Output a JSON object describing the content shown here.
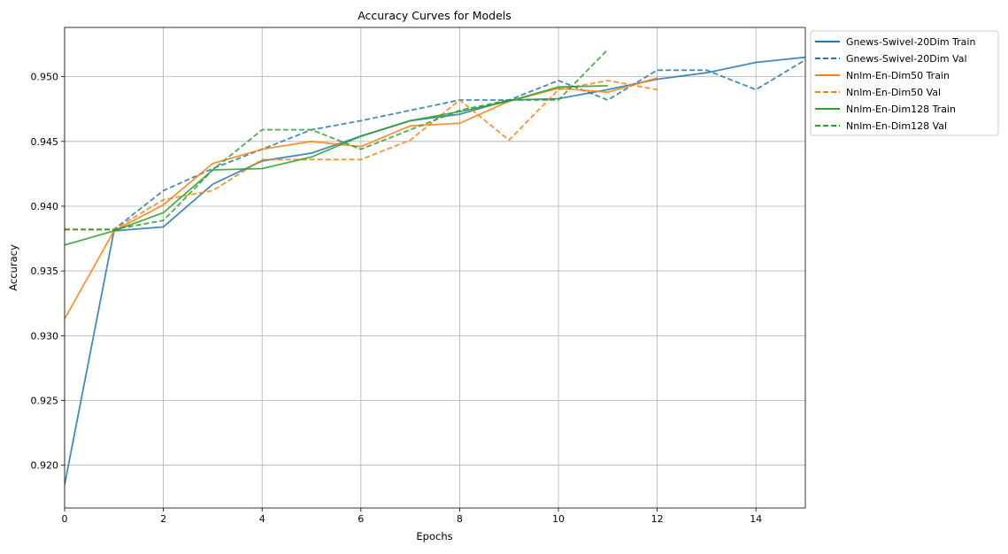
{
  "chart_data": {
    "type": "line",
    "title": "Accuracy Curves for Models",
    "xlabel": "Epochs",
    "ylabel": "Accuracy",
    "xlim": [
      0,
      15
    ],
    "ylim": [
      0.9167,
      0.9538
    ],
    "xticks": [
      0,
      2,
      4,
      6,
      8,
      10,
      12,
      14
    ],
    "xtick_labels": [
      "0",
      "2",
      "4",
      "6",
      "8",
      "10",
      "12",
      "14"
    ],
    "yticks": [
      0.92,
      0.925,
      0.93,
      0.935,
      0.94,
      0.945,
      0.95
    ],
    "ytick_labels": [
      "0.920",
      "0.925",
      "0.930",
      "0.935",
      "0.940",
      "0.945",
      "0.950"
    ],
    "grid": true,
    "legend_position": "outside-top-right",
    "series": [
      {
        "name": "Gnews-Swivel-20Dim Train",
        "color": "#1f77b4",
        "style": "solid",
        "x": [
          0,
          1,
          2,
          3,
          4,
          5,
          6,
          7,
          8,
          9,
          10,
          11,
          12,
          13,
          14,
          15
        ],
        "y": [
          0.9185,
          0.9381,
          0.9384,
          0.9417,
          0.9435,
          0.9441,
          0.9454,
          0.9466,
          0.9471,
          0.9482,
          0.9483,
          0.949,
          0.9498,
          0.9503,
          0.9511,
          0.9515
        ]
      },
      {
        "name": "Gnews-Swivel-20Dim Val",
        "color": "#1f77b4",
        "style": "dashed",
        "x": [
          0,
          1,
          2,
          3,
          4,
          5,
          6,
          7,
          8,
          9,
          10,
          11,
          12,
          13,
          14,
          15
        ],
        "y": [
          0.9382,
          0.9382,
          0.9412,
          0.9429,
          0.9444,
          0.9459,
          0.9466,
          0.9474,
          0.9482,
          0.9482,
          0.9497,
          0.9482,
          0.9505,
          0.9505,
          0.949,
          0.9513
        ]
      },
      {
        "name": "Nnlm-En-Dim50 Train",
        "color": "#ff7f0e",
        "style": "solid",
        "x": [
          0,
          1,
          2,
          3,
          4,
          5,
          6,
          7,
          8,
          9,
          10,
          11,
          12
        ],
        "y": [
          0.9313,
          0.9381,
          0.9401,
          0.9433,
          0.9444,
          0.945,
          0.9446,
          0.9462,
          0.9464,
          0.9481,
          0.9491,
          0.9488,
          0.9499
        ]
      },
      {
        "name": "Nnlm-En-Dim50 Val",
        "color": "#ff7f0e",
        "style": "dashed",
        "x": [
          0,
          1,
          2,
          3,
          4,
          5,
          6,
          7,
          8,
          9,
          10,
          11,
          12
        ],
        "y": [
          0.9382,
          0.9382,
          0.9405,
          0.9412,
          0.9436,
          0.9436,
          0.9436,
          0.9451,
          0.9482,
          0.9451,
          0.949,
          0.9497,
          0.949
        ]
      },
      {
        "name": "Nnlm-En-Dim128 Train",
        "color": "#2ca02c",
        "style": "solid",
        "x": [
          0,
          1,
          2,
          3,
          4,
          5,
          6,
          7,
          8,
          9,
          10,
          11
        ],
        "y": [
          0.937,
          0.9381,
          0.9395,
          0.9428,
          0.9429,
          0.9438,
          0.9454,
          0.9466,
          0.9473,
          0.9481,
          0.9492,
          0.9493
        ]
      },
      {
        "name": "Nnlm-En-Dim128 Val",
        "color": "#2ca02c",
        "style": "dashed",
        "x": [
          0,
          1,
          2,
          3,
          4,
          5,
          6,
          7,
          8,
          9,
          10,
          11
        ],
        "y": [
          0.9382,
          0.9382,
          0.9389,
          0.9428,
          0.9459,
          0.9459,
          0.9444,
          0.9459,
          0.9474,
          0.9482,
          0.9482,
          0.9521
        ]
      }
    ]
  }
}
